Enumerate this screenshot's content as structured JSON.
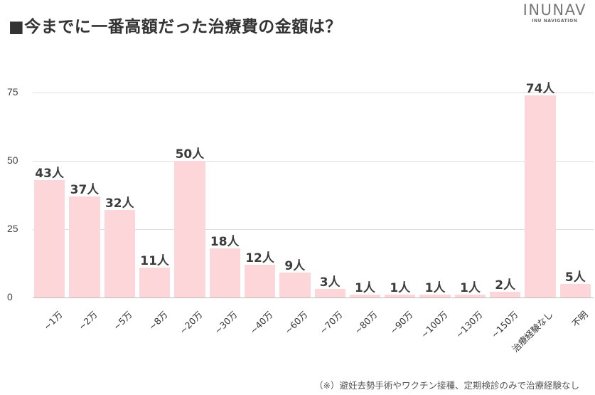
{
  "header": {
    "title": "■今までに一番高額だった治療費の金額は？",
    "logo_main": "INUNAV",
    "logo_sub": "INU NAVIGATION"
  },
  "footnote": "（※）避妊去勢手術やワクチン接種、定期検診のみで治療経験なし",
  "colors": {
    "bar": "#fcd6d9",
    "text": "#333333",
    "grid": "#dedede"
  },
  "chart_data": {
    "type": "bar",
    "title": "■今までに一番高額だった治療費の金額は？",
    "xlabel": "",
    "ylabel": "",
    "ylim": [
      0,
      75
    ],
    "yticks": [
      0,
      25,
      50,
      75
    ],
    "grid": true,
    "legend": null,
    "value_suffix": "人",
    "categories": [
      "~1万",
      "~2万",
      "~5万",
      "~8万",
      "~20万",
      "~30万",
      "~40万",
      "~60万",
      "~70万",
      "~80万",
      "~90万",
      "~100万",
      "~130万",
      "~150万",
      "治療経験なし",
      "不明"
    ],
    "values": [
      43,
      37,
      32,
      11,
      50,
      18,
      12,
      9,
      3,
      1,
      1,
      1,
      1,
      2,
      74,
      5
    ],
    "labels": [
      "43人",
      "37人",
      "32人",
      "11人",
      "50人",
      "18人",
      "12人",
      "9人",
      "3人",
      "1人",
      "1人",
      "1人",
      "1人",
      "2人",
      "74人",
      "5人"
    ],
    "annotation": "（※）避妊去勢手術やワクチン接種、定期検診のみで治療経験なし"
  }
}
